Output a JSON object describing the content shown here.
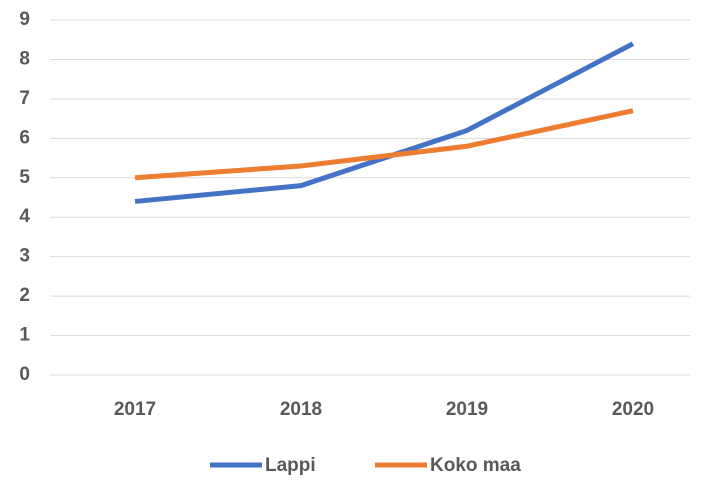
{
  "chart_data": {
    "type": "line",
    "categories": [
      "2017",
      "2018",
      "2019",
      "2020"
    ],
    "series": [
      {
        "name": "Lappi",
        "color": "#4472c4",
        "values": [
          4.4,
          4.8,
          6.2,
          8.4
        ]
      },
      {
        "name": "Koko maa",
        "color": "#ed7d31",
        "values": [
          5.0,
          5.3,
          5.8,
          6.7
        ]
      }
    ],
    "ylim": [
      0,
      9
    ],
    "yticks": [
      0,
      1,
      2,
      3,
      4,
      5,
      6,
      7,
      8,
      9
    ],
    "grid": true,
    "legend": "bottom"
  }
}
